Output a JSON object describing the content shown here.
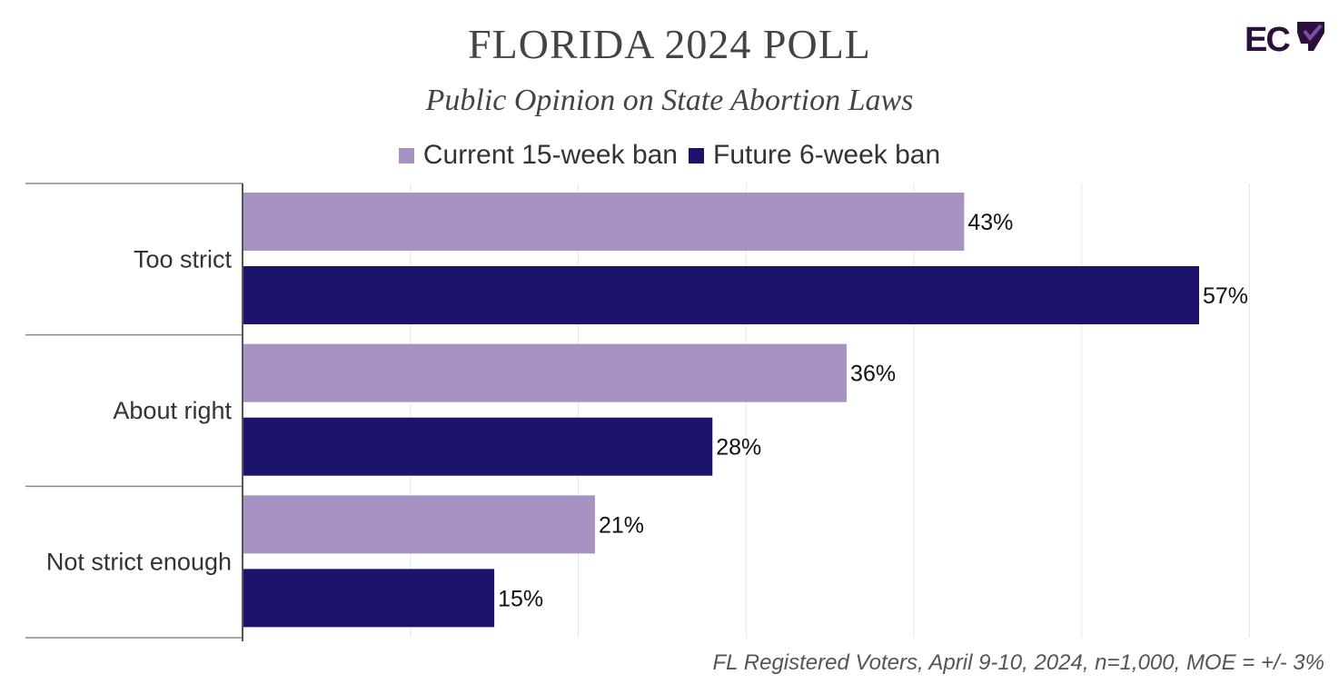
{
  "title": "FLORIDA 2024 POLL",
  "subtitle": "Public Opinion on State Abortion Laws",
  "logo_text": "EC",
  "footnote": "FL Registered Voters, April 9-10, 2024, n=1,000, MOE = +/- 3%",
  "chart_data": {
    "type": "bar",
    "orientation": "horizontal",
    "categories": [
      "Too strict",
      "About right",
      "Not strict enough"
    ],
    "series": [
      {
        "name": "Current 15-week ban",
        "color": "#a793c3",
        "values": [
          43,
          36,
          21
        ],
        "labels": [
          "43%",
          "36%",
          "21%"
        ]
      },
      {
        "name": "Future 6-week ban",
        "color": "#1c146b",
        "values": [
          57,
          28,
          15
        ],
        "labels": [
          "57%",
          "28%",
          "15%"
        ]
      }
    ],
    "xlim": [
      0,
      60
    ],
    "grid": true,
    "legend_position": "top-center",
    "unit": "%"
  }
}
